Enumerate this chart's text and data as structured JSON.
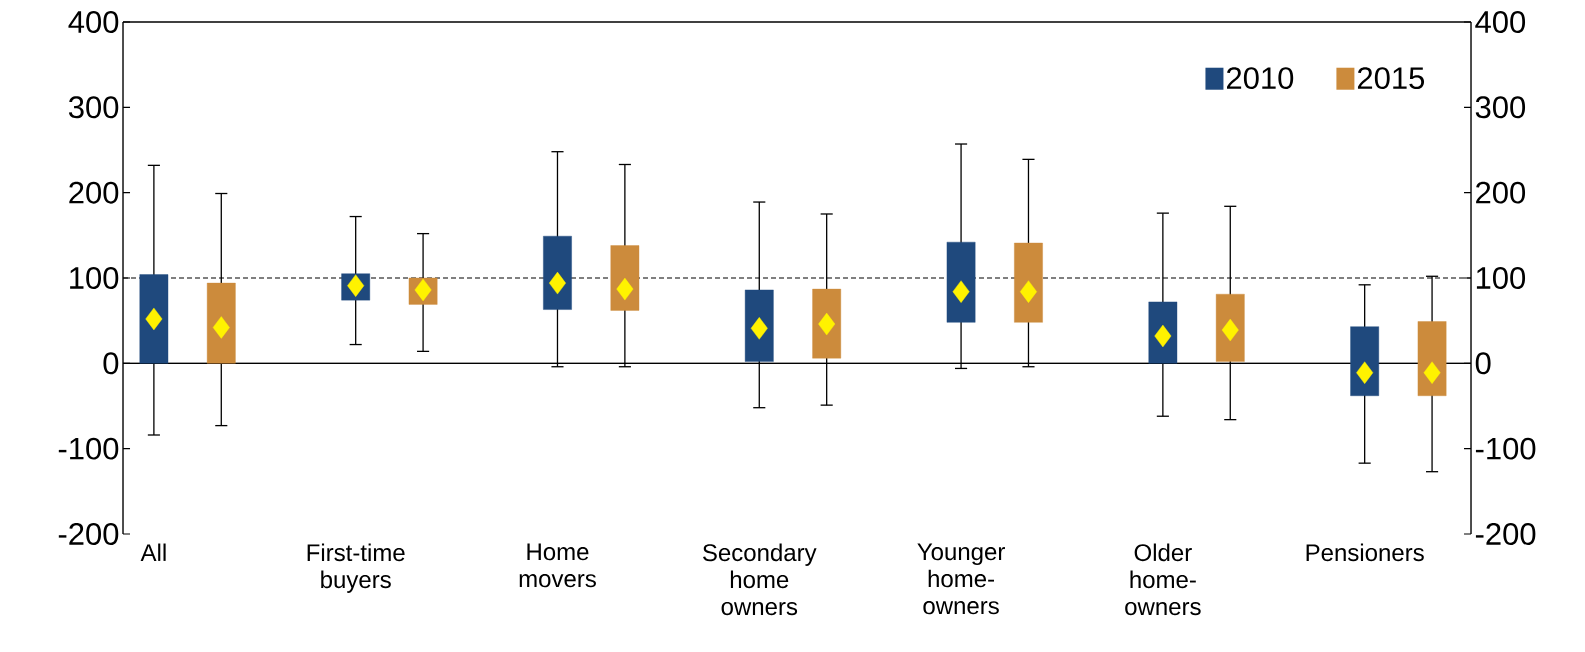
{
  "chart_data": {
    "type": "box",
    "categories": [
      "All",
      "First-time buyers",
      "Home movers",
      "Secondary home owners",
      "Younger home-owners",
      "Older home-owners",
      "Pensioners"
    ],
    "series": [
      {
        "name": "2010",
        "color": "#1f497d",
        "boxes": [
          {
            "low": -84,
            "q1": 0,
            "median": 52,
            "q3": 104,
            "high": 232
          },
          {
            "low": 22,
            "q1": 74,
            "median": 91,
            "q3": 105,
            "high": 172
          },
          {
            "low": -4,
            "q1": 63,
            "median": 94,
            "q3": 149,
            "high": 248
          },
          {
            "low": -52,
            "q1": 2,
            "median": 41,
            "q3": 86,
            "high": 189
          },
          {
            "low": -6,
            "q1": 48,
            "median": 84,
            "q3": 142,
            "high": 257
          },
          {
            "low": -62,
            "q1": 0,
            "median": 32,
            "q3": 72,
            "high": 176
          },
          {
            "low": -117,
            "q1": -38,
            "median": -11,
            "q3": 43,
            "high": 92
          }
        ]
      },
      {
        "name": "2015",
        "color": "#cc8b3c",
        "boxes": [
          {
            "low": -73,
            "q1": 0,
            "median": 42,
            "q3": 94,
            "high": 199
          },
          {
            "low": 14,
            "q1": 69,
            "median": 86,
            "q3": 100,
            "high": 152
          },
          {
            "low": -4,
            "q1": 62,
            "median": 87,
            "q3": 138,
            "high": 233
          },
          {
            "low": -49,
            "q1": 6,
            "median": 46,
            "q3": 87,
            "high": 175
          },
          {
            "low": -4,
            "q1": 48,
            "median": 84,
            "q3": 141,
            "high": 239
          },
          {
            "low": -66,
            "q1": 2,
            "median": 39,
            "q3": 81,
            "high": 184
          },
          {
            "low": -127,
            "q1": -38,
            "median": -11,
            "q3": 49,
            "high": 102
          }
        ]
      }
    ],
    "ylim": [
      -200,
      400
    ],
    "yticks": [
      -200,
      -100,
      0,
      100,
      200,
      300,
      400
    ],
    "y2lim": [
      -200,
      400
    ],
    "y2ticks": [
      -200,
      -100,
      0,
      100,
      200,
      300,
      400
    ],
    "ref_lines": [
      {
        "axis": "y",
        "value": 100,
        "line_style": "dashed"
      },
      {
        "axis": "y",
        "value": 0,
        "line_style": "solid"
      }
    ],
    "legend": "top right",
    "marker": "diamond",
    "grid": false
  }
}
